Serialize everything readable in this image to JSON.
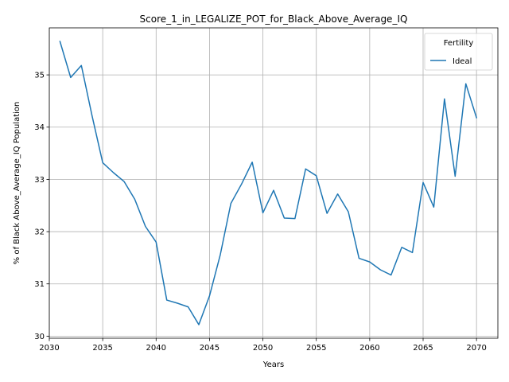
{
  "chart_data": {
    "type": "line",
    "title": "Score_1_in_LEGALIZE_POT_for_Black_Above_Average_IQ",
    "xlabel": "Years",
    "ylabel": "% of Black Above_Average_IQ Population",
    "xlim": [
      2030,
      2072
    ],
    "ylim": [
      29.96,
      35.9
    ],
    "xticks": [
      2030,
      2035,
      2040,
      2045,
      2050,
      2055,
      2060,
      2065,
      2070
    ],
    "yticks": [
      30,
      31,
      32,
      33,
      34,
      35
    ],
    "grid": true,
    "legend": {
      "title": "Fertility",
      "placement": "top-right"
    },
    "series": [
      {
        "name": "Ideal",
        "color": "#1f77b4",
        "x": [
          2031,
          2032,
          2033,
          2034,
          2035,
          2036,
          2037,
          2038,
          2039,
          2040,
          2041,
          2042,
          2043,
          2044,
          2045,
          2046,
          2047,
          2048,
          2049,
          2050,
          2051,
          2052,
          2053,
          2054,
          2055,
          2056,
          2057,
          2058,
          2059,
          2060,
          2061,
          2062,
          2063,
          2064,
          2065,
          2066,
          2067,
          2068,
          2069,
          2070
        ],
        "values": [
          35.64,
          34.95,
          35.18,
          34.22,
          33.32,
          33.13,
          32.96,
          32.62,
          32.1,
          31.8,
          30.69,
          30.63,
          30.56,
          30.22,
          30.77,
          31.55,
          32.54,
          32.91,
          33.33,
          32.36,
          32.79,
          32.26,
          32.25,
          33.2,
          33.07,
          32.35,
          32.72,
          32.38,
          31.49,
          31.42,
          31.27,
          31.17,
          31.7,
          31.6,
          32.94,
          32.47,
          34.54,
          33.06,
          34.83,
          34.18
        ]
      }
    ]
  }
}
